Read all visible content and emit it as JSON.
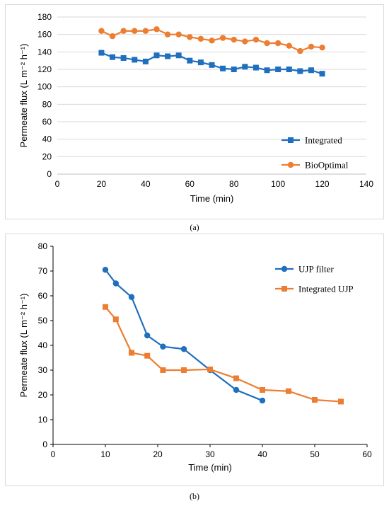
{
  "chart_data": [
    {
      "type": "line",
      "panel_label": "(a)",
      "xlabel": "Time (min)",
      "ylabel": "Permeate flux (L m⁻² h⁻¹)",
      "xlim": [
        0,
        140
      ],
      "ylim": [
        0,
        180
      ],
      "xticks": [
        0,
        20,
        40,
        60,
        80,
        100,
        120,
        140
      ],
      "yticks": [
        0,
        20,
        40,
        60,
        80,
        100,
        120,
        140,
        160,
        180
      ],
      "grid": "horizontal",
      "legend_position": "bottom-right",
      "series": [
        {
          "name": "Integrated",
          "color": "#1f6fbf",
          "marker": "square",
          "x": [
            20,
            25,
            30,
            35,
            40,
            45,
            50,
            55,
            60,
            65,
            70,
            75,
            80,
            85,
            90,
            95,
            100,
            105,
            110,
            115,
            120
          ],
          "y": [
            139,
            134,
            133,
            131,
            129,
            136,
            135,
            136,
            130,
            128,
            125,
            121,
            120,
            123,
            122,
            119,
            120,
            120,
            118,
            119,
            115
          ]
        },
        {
          "name": "BioOptimal",
          "color": "#ed7d31",
          "marker": "circle",
          "x": [
            20,
            25,
            30,
            35,
            40,
            45,
            50,
            55,
            60,
            65,
            70,
            75,
            80,
            85,
            90,
            95,
            100,
            105,
            110,
            115,
            120
          ],
          "y": [
            164,
            158,
            164,
            164,
            164,
            166,
            160,
            160,
            157,
            155,
            153,
            156,
            154,
            152,
            154,
            150,
            150,
            147,
            141,
            146,
            145
          ]
        }
      ]
    },
    {
      "type": "line",
      "panel_label": "(b)",
      "xlabel": "Time (min)",
      "ylabel": "Permeate flux (L m⁻² h⁻¹)",
      "xlim": [
        0,
        60
      ],
      "ylim": [
        0,
        80
      ],
      "xticks": [
        0,
        10,
        20,
        30,
        40,
        50,
        60
      ],
      "yticks": [
        0,
        10,
        20,
        30,
        40,
        50,
        60,
        70,
        80
      ],
      "grid": "none",
      "legend_position": "top-right",
      "series": [
        {
          "name": "UJP filter",
          "color": "#1f6fbf",
          "marker": "circle",
          "x": [
            10,
            12,
            15,
            18,
            21,
            25,
            30,
            35,
            40
          ],
          "y": [
            70.5,
            65,
            59.5,
            44,
            39.5,
            38.5,
            30,
            22,
            17.7
          ]
        },
        {
          "name": "Integrated UJP",
          "color": "#ed7d31",
          "marker": "square",
          "x": [
            10,
            12,
            15,
            18,
            21,
            25,
            30,
            35,
            40,
            45,
            50,
            55
          ],
          "y": [
            55.5,
            50.5,
            37,
            35.8,
            30,
            30,
            30.3,
            26.7,
            22,
            21.5,
            18,
            17.3
          ]
        }
      ]
    }
  ]
}
